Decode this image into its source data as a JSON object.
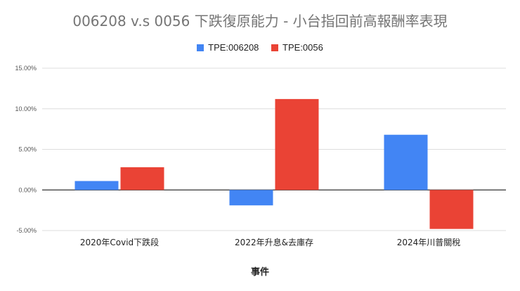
{
  "chart_data": {
    "type": "bar",
    "title": "006208 v.s 0056 下跌復原能力 - 小台指回前高報酬率表現",
    "xlabel": "事件",
    "ylabel": "",
    "categories": [
      "2020年Covid下跌段",
      "2022年升息&去庫存",
      "2024年川普關稅"
    ],
    "series": [
      {
        "name": "TPE:006208",
        "color": "#4285F4",
        "values": [
          1.1,
          -1.9,
          6.8
        ]
      },
      {
        "name": "TPE:0056",
        "color": "#EA4335",
        "values": [
          2.8,
          11.2,
          -4.8
        ]
      }
    ],
    "yticks": [
      "15.00%",
      "10.00%",
      "5.00%",
      "0.00%",
      "-5.00%"
    ],
    "ytick_values": [
      15,
      10,
      5,
      0,
      -5
    ],
    "ylim": [
      -5,
      15
    ],
    "legend": "top-center",
    "grid": true
  }
}
